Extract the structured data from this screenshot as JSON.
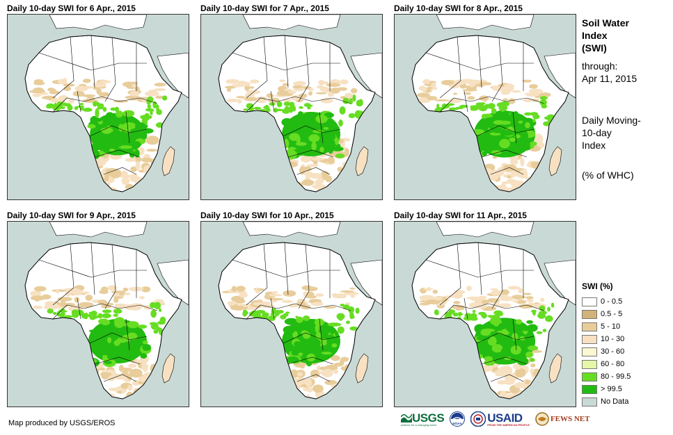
{
  "panels": [
    {
      "title": "Daily 10-day  SWI for 6 Apr., 2015",
      "wet": 0.95
    },
    {
      "title": "Daily 10-day  SWI for 7 Apr., 2015",
      "wet": 1.0
    },
    {
      "title": "Daily 10-day  SWI for 8 Apr., 2015",
      "wet": 1.05
    },
    {
      "title": "Daily 10-day  SWI for 9 Apr., 2015",
      "wet": 1.0
    },
    {
      "title": "Daily 10-day  SWI for 10 Apr., 2015",
      "wet": 1.0
    },
    {
      "title": "Daily 10-day  SWI for 11 Apr., 2015",
      "wet": 1.05
    }
  ],
  "side": {
    "title_line1": "Soil Water",
    "title_line2": "Index",
    "title_line3": "(SWI)",
    "through_label": "through:",
    "through_date": "Apr 11, 2015",
    "desc_line1": "Daily Moving-",
    "desc_line2": "10-day",
    "desc_line3": "Index",
    "unit": "(% of WHC)"
  },
  "legend": {
    "title": "SWI (%)",
    "items": [
      {
        "label": "0 - 0.5",
        "color": "#ffffff"
      },
      {
        "label": "0.5 - 5",
        "color": "#d2b279"
      },
      {
        "label": "5 - 10",
        "color": "#e8cd9b"
      },
      {
        "label": "10 - 30",
        "color": "#f7e1c2"
      },
      {
        "label": "30 - 60",
        "color": "#fbf7d0"
      },
      {
        "label": "60 - 80",
        "color": "#e6f7a8"
      },
      {
        "label": "80 - 99.5",
        "color": "#66dd22"
      },
      {
        "label": "> 99.5",
        "color": "#22bb11"
      },
      {
        "label": "No Data",
        "color": "#c9d9d6"
      }
    ]
  },
  "credit": "Map produced by USGS/EROS",
  "logos": {
    "usgs": "USGS",
    "usgs_tag": "science for a changing world",
    "noaa": "NOAA",
    "usaid": "USAID",
    "usaid_tag": "FROM THE AMERICAN PEOPLE",
    "fews": "FEWS NET"
  },
  "colors": {
    "ocean": "#c9d9d6",
    "land": "#ffffff",
    "border": "#000000",
    "desert": "#e8cd9b",
    "semi": "#f7e1c2",
    "wet": "#66dd22",
    "very_wet": "#22bb11"
  }
}
